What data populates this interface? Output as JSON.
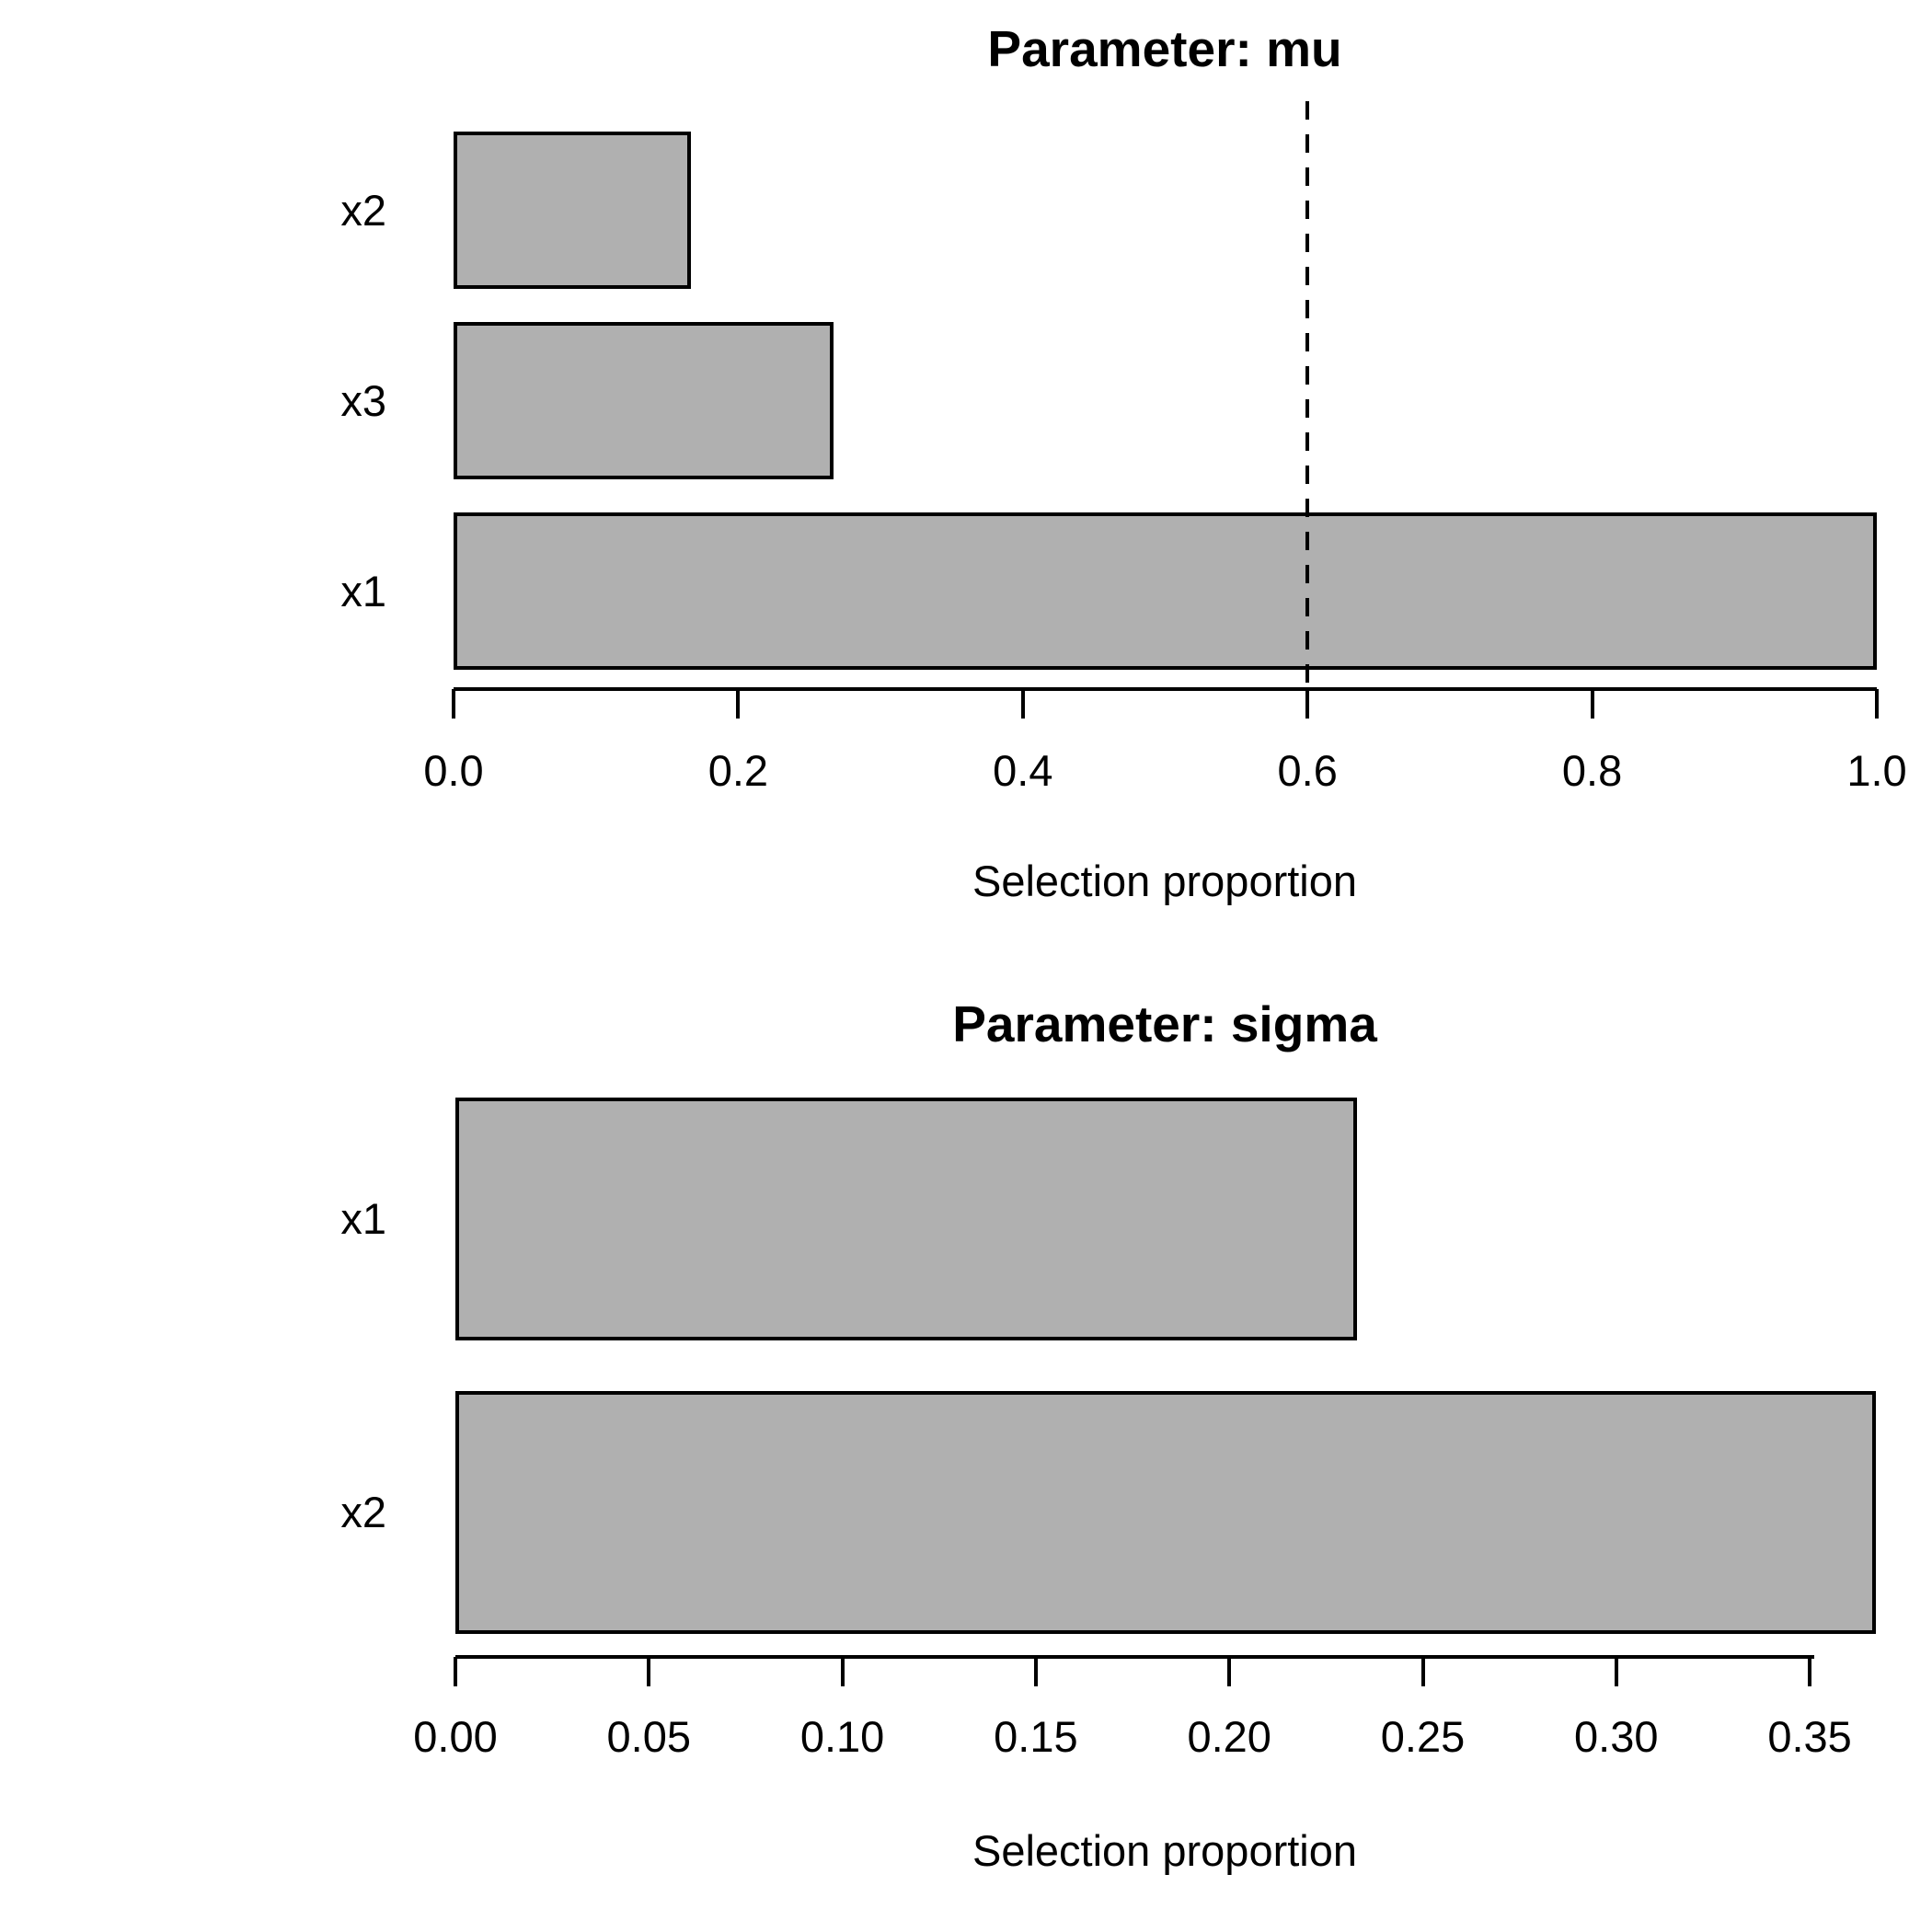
{
  "page": {
    "background_color": "#FFFFFF",
    "text_color": "#000000"
  },
  "colors": {
    "bar_fill": "#B0B0B0",
    "bar_border": "#000000",
    "axis_color": "#000000",
    "threshold_line_color": "#000000"
  },
  "chart_data": [
    {
      "type": "bar",
      "orientation": "horizontal",
      "title": "Parameter: mu",
      "xlabel": "Selection proportion",
      "categories_top_to_bottom": [
        "x2",
        "x3",
        "x1"
      ],
      "values": [
        0.167,
        0.267,
        1.0
      ],
      "xlim": [
        0,
        1.0
      ],
      "xticks": [
        0.0,
        0.2,
        0.4,
        0.6,
        0.8,
        1.0
      ],
      "xtick_labels": [
        "0.0",
        "0.2",
        "0.4",
        "0.6",
        "0.8",
        "1.0"
      ],
      "threshold_line": {
        "x": 0.6,
        "style": "dashed"
      },
      "grid": false,
      "legend": null
    },
    {
      "type": "bar",
      "orientation": "horizontal",
      "title": "Parameter: sigma",
      "xlabel": "Selection proportion",
      "categories_top_to_bottom": [
        "x1",
        "x2"
      ],
      "values": [
        0.233,
        0.367
      ],
      "xlim": [
        0,
        0.367
      ],
      "xticks": [
        0.0,
        0.05,
        0.1,
        0.15,
        0.2,
        0.25,
        0.3,
        0.35
      ],
      "xtick_labels": [
        "0.00",
        "0.05",
        "0.10",
        "0.15",
        "0.20",
        "0.25",
        "0.30",
        "0.35"
      ],
      "threshold_line": null,
      "grid": false,
      "legend": null
    }
  ]
}
